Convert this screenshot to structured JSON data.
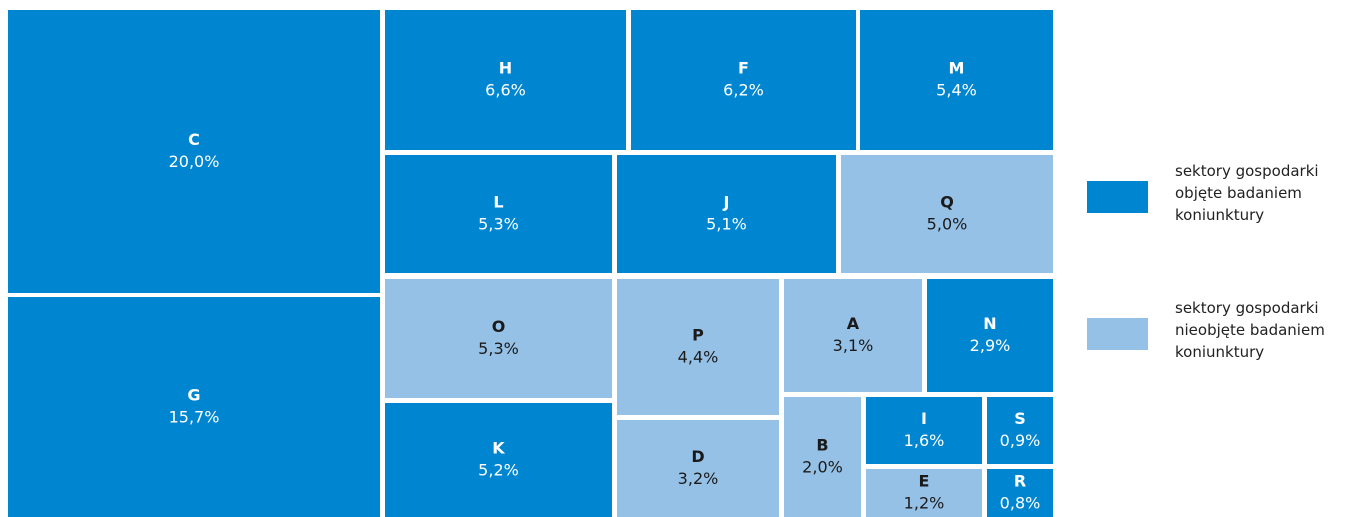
{
  "chart_data": {
    "type": "treemap",
    "series": [
      {
        "name": "sektory gospodarki objęte badaniem koniunktury",
        "color": "#0086d1",
        "text_color": "#ffffff",
        "categories": [
          "C",
          "G",
          "H",
          "F",
          "M",
          "L",
          "J",
          "K",
          "N",
          "I",
          "S",
          "R"
        ],
        "values": [
          20.0,
          15.7,
          6.6,
          6.2,
          5.4,
          5.3,
          5.1,
          5.2,
          2.9,
          1.6,
          0.9,
          0.8
        ],
        "value_labels": [
          "20,0%",
          "15,7%",
          "6,6%",
          "6,2%",
          "5,4%",
          "5,3%",
          "5,1%",
          "5,2%",
          "2,9%",
          "1,6%",
          "0,9%",
          "0,8%"
        ]
      },
      {
        "name": "sektory gospodarki nieobjęte badaniem koniunktury",
        "color": "#96c1e7",
        "text_color": "#1a1a1a",
        "categories": [
          "Q",
          "O",
          "P",
          "A",
          "D",
          "B",
          "E"
        ],
        "values": [
          5.0,
          5.3,
          4.4,
          3.1,
          3.2,
          2.0,
          1.2
        ],
        "value_labels": [
          "5,0%",
          "5,3%",
          "4,4%",
          "3,1%",
          "3,2%",
          "2,0%",
          "1,2%"
        ]
      }
    ]
  }
}
